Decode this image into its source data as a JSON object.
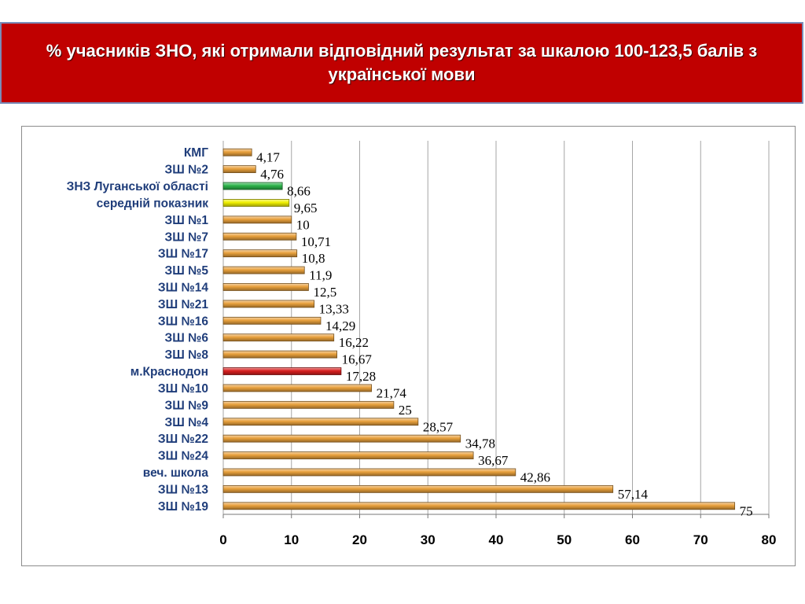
{
  "header": {
    "title": "% учасників ЗНО, які отримали відповідний результат за шкалою 100-123,5 балів з української мови"
  },
  "colors": {
    "banner": "#c00000",
    "bar_default": "#e8a03c",
    "bar_region": "#2cb34a",
    "bar_average": "#f0f000",
    "bar_city": "#d81e1e",
    "category_text": "#1f3d7a"
  },
  "chart_data": {
    "type": "bar",
    "orientation": "horizontal",
    "categories": [
      "КМГ",
      "ЗШ №2",
      "ЗНЗ Луганської області",
      "середній показник",
      "ЗШ №1",
      "ЗШ №7",
      "ЗШ №17",
      "ЗШ №5",
      "ЗШ №14",
      "ЗШ №21",
      "ЗШ №16",
      "ЗШ №6",
      "ЗШ №8",
      "м.Краснодон",
      "ЗШ №10",
      "ЗШ №9",
      "ЗШ №4",
      "ЗШ №22",
      "ЗШ №24",
      "веч. школа",
      "ЗШ №13",
      "ЗШ №19"
    ],
    "values": [
      4.17,
      4.76,
      8.66,
      9.65,
      10,
      10.71,
      10.8,
      11.9,
      12.5,
      13.33,
      14.29,
      16.22,
      16.67,
      17.28,
      21.74,
      25,
      28.57,
      34.78,
      36.67,
      42.86,
      57.14,
      75
    ],
    "value_labels": [
      "4,17",
      "4,76",
      "8,66",
      "9,65",
      "10",
      "10,71",
      "10,8",
      "11,9",
      "12,5",
      "13,33",
      "14,29",
      "16,22",
      "16,67",
      "17,28",
      "21,74",
      "25",
      "28,57",
      "34,78",
      "36,67",
      "42,86",
      "57,14",
      "75"
    ],
    "bar_colors": [
      "#e8a03c",
      "#e8a03c",
      "#2cb34a",
      "#f0f000",
      "#e8a03c",
      "#e8a03c",
      "#e8a03c",
      "#e8a03c",
      "#e8a03c",
      "#e8a03c",
      "#e8a03c",
      "#e8a03c",
      "#e8a03c",
      "#d81e1e",
      "#e8a03c",
      "#e8a03c",
      "#e8a03c",
      "#e8a03c",
      "#e8a03c",
      "#e8a03c",
      "#e8a03c",
      "#e8a03c"
    ],
    "xlim": [
      0,
      80
    ],
    "x_ticks": [
      0,
      10,
      20,
      30,
      40,
      50,
      60,
      70,
      80
    ],
    "grid": true,
    "legend": "none",
    "title": "",
    "xlabel": "",
    "ylabel": ""
  }
}
